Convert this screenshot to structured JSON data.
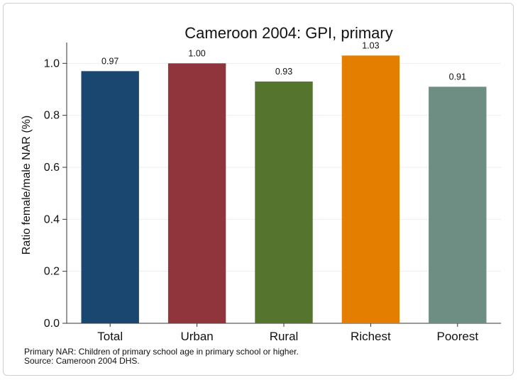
{
  "chart_data": {
    "type": "bar",
    "title": "Cameroon 2004: GPI, primary",
    "ylabel": "Ratio female/male NAR (%)",
    "xlabel": "",
    "categories": [
      "Total",
      "Urban",
      "Rural",
      "Richest",
      "Poorest"
    ],
    "values": [
      0.97,
      1.0,
      0.93,
      1.03,
      0.91
    ],
    "data_labels": [
      "0.97",
      "1.00",
      "0.93",
      "1.03",
      "0.91"
    ],
    "colors": [
      "#1a476f",
      "#90353b",
      "#55752f",
      "#e37e00",
      "#6e8e84"
    ],
    "ylim": [
      0,
      1.08
    ],
    "yticks": [
      0.0,
      0.2,
      0.4,
      0.6,
      0.8,
      1.0
    ],
    "ytick_labels": [
      "0.0",
      "0.2",
      "0.4",
      "0.6",
      "0.8",
      "1.0"
    ],
    "grid": true,
    "legend": "none"
  },
  "notes": {
    "line1": "Primary NAR: Children of primary school age in primary school or higher.",
    "line2": "Source: Cameroon 2004 DHS."
  }
}
